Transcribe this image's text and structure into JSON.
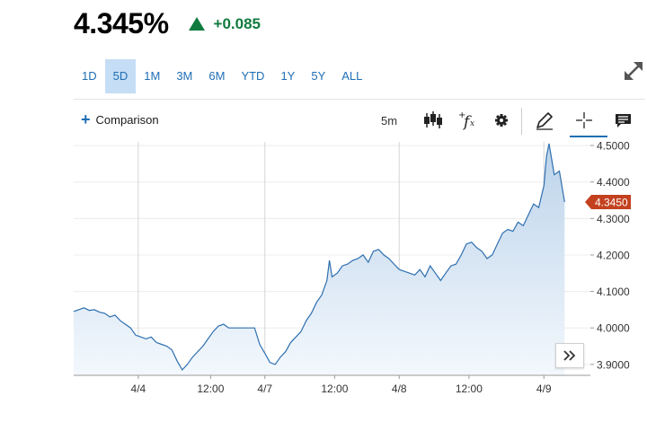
{
  "quote": {
    "price": "4.345%",
    "change": "+0.085",
    "direction": "up",
    "up_color": "#0f7b3e"
  },
  "ranges": [
    "1D",
    "5D",
    "1M",
    "3M",
    "6M",
    "YTD",
    "1Y",
    "5Y",
    "ALL"
  ],
  "active_range": "5D",
  "toolbar": {
    "comparison_label": "Comparison",
    "interval_label": "5m",
    "icons": [
      "candlestick-icon",
      "function-icon",
      "gear-icon",
      "pencil-icon",
      "crosshair-icon",
      "news-icon"
    ]
  },
  "chart_data": {
    "type": "area",
    "color": "#2e6fb0",
    "fill_top": "#bcd3ea",
    "current_value": 4.345,
    "current_label": "4.3450",
    "current_label_color": "#c3411f",
    "ylim": [
      3.87,
      4.51
    ],
    "yticks": [
      "4.5000",
      "4.4000",
      "4.3000",
      "4.2000",
      "4.1000",
      "4.0000",
      "3.9000"
    ],
    "ytick_values": [
      4.5,
      4.4,
      4.3,
      4.2,
      4.1,
      4.0,
      3.9
    ],
    "xlim": [
      0,
      100
    ],
    "xticks": [
      {
        "x": 12.5,
        "label": "4/4"
      },
      {
        "x": 26.5,
        "label": "12:00"
      },
      {
        "x": 37.0,
        "label": "4/7"
      },
      {
        "x": 50.5,
        "label": "12:00"
      },
      {
        "x": 63.0,
        "label": "4/8"
      },
      {
        "x": 76.5,
        "label": "12:00"
      },
      {
        "x": 91.0,
        "label": "4/9"
      }
    ],
    "day_dividers": [
      12.5,
      37.0,
      63.0,
      91.0
    ],
    "x": [
      0,
      2,
      3,
      4,
      5,
      6,
      7,
      8,
      9,
      10,
      11,
      12,
      13,
      14,
      15,
      16,
      17,
      18,
      19,
      20,
      21,
      22,
      23,
      24,
      25,
      26,
      27,
      28,
      29,
      30,
      31,
      32,
      33,
      34,
      35,
      36,
      37,
      38,
      39,
      40,
      41,
      42,
      43,
      44,
      45,
      46,
      47,
      48,
      49,
      49.5,
      50,
      51,
      52,
      53,
      54,
      55,
      56,
      57,
      58,
      59,
      60,
      61,
      62,
      63,
      64,
      65,
      66,
      67,
      68,
      69,
      70,
      71,
      72,
      73,
      74,
      75,
      76,
      77,
      78,
      79,
      80,
      81,
      82,
      83,
      84,
      85,
      86,
      87,
      88,
      89,
      90,
      90.5,
      91,
      91.5,
      92,
      93,
      94,
      95
    ],
    "y": [
      4.045,
      4.055,
      4.048,
      4.05,
      4.043,
      4.04,
      4.03,
      4.035,
      4.02,
      4.01,
      4.0,
      3.98,
      3.975,
      3.97,
      3.975,
      3.96,
      3.955,
      3.95,
      3.94,
      3.91,
      3.885,
      3.9,
      3.92,
      3.935,
      3.95,
      3.97,
      3.99,
      4.005,
      4.01,
      4.0,
      4.0,
      4.0,
      4.0,
      4.0,
      4.0,
      3.955,
      3.93,
      3.905,
      3.9,
      3.92,
      3.935,
      3.96,
      3.975,
      3.99,
      4.02,
      4.04,
      4.07,
      4.09,
      4.13,
      4.185,
      4.14,
      4.15,
      4.17,
      4.175,
      4.185,
      4.19,
      4.2,
      4.18,
      4.21,
      4.215,
      4.2,
      4.19,
      4.175,
      4.16,
      4.155,
      4.15,
      4.145,
      4.16,
      4.14,
      4.17,
      4.15,
      4.13,
      4.15,
      4.17,
      4.175,
      4.2,
      4.23,
      4.235,
      4.22,
      4.21,
      4.19,
      4.2,
      4.23,
      4.26,
      4.27,
      4.265,
      4.29,
      4.28,
      4.31,
      4.34,
      4.33,
      4.36,
      4.39,
      4.47,
      4.505,
      4.42,
      4.43,
      4.345
    ]
  }
}
